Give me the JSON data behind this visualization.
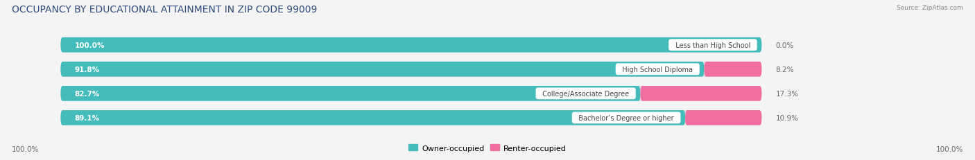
{
  "title": "OCCUPANCY BY EDUCATIONAL ATTAINMENT IN ZIP CODE 99009",
  "source": "Source: ZipAtlas.com",
  "categories": [
    "Less than High School",
    "High School Diploma",
    "College/Associate Degree",
    "Bachelor’s Degree or higher"
  ],
  "owner_pct": [
    100.0,
    91.8,
    82.7,
    89.1
  ],
  "renter_pct": [
    0.0,
    8.2,
    17.3,
    10.9
  ],
  "owner_color": "#45BCBC",
  "renter_color": "#F06EA0",
  "bar_bg_color": "#E0E0E0",
  "background_color": "#F4F4F4",
  "title_color": "#2E4A7A",
  "source_color": "#888888",
  "pct_label_color_inside": "#FFFFFF",
  "pct_label_color_outside": "#666666",
  "cat_label_color": "#444444",
  "title_fontsize": 10,
  "label_fontsize": 7.5,
  "legend_fontsize": 8,
  "left_axis_label": "100.0%",
  "right_axis_label": "100.0%"
}
